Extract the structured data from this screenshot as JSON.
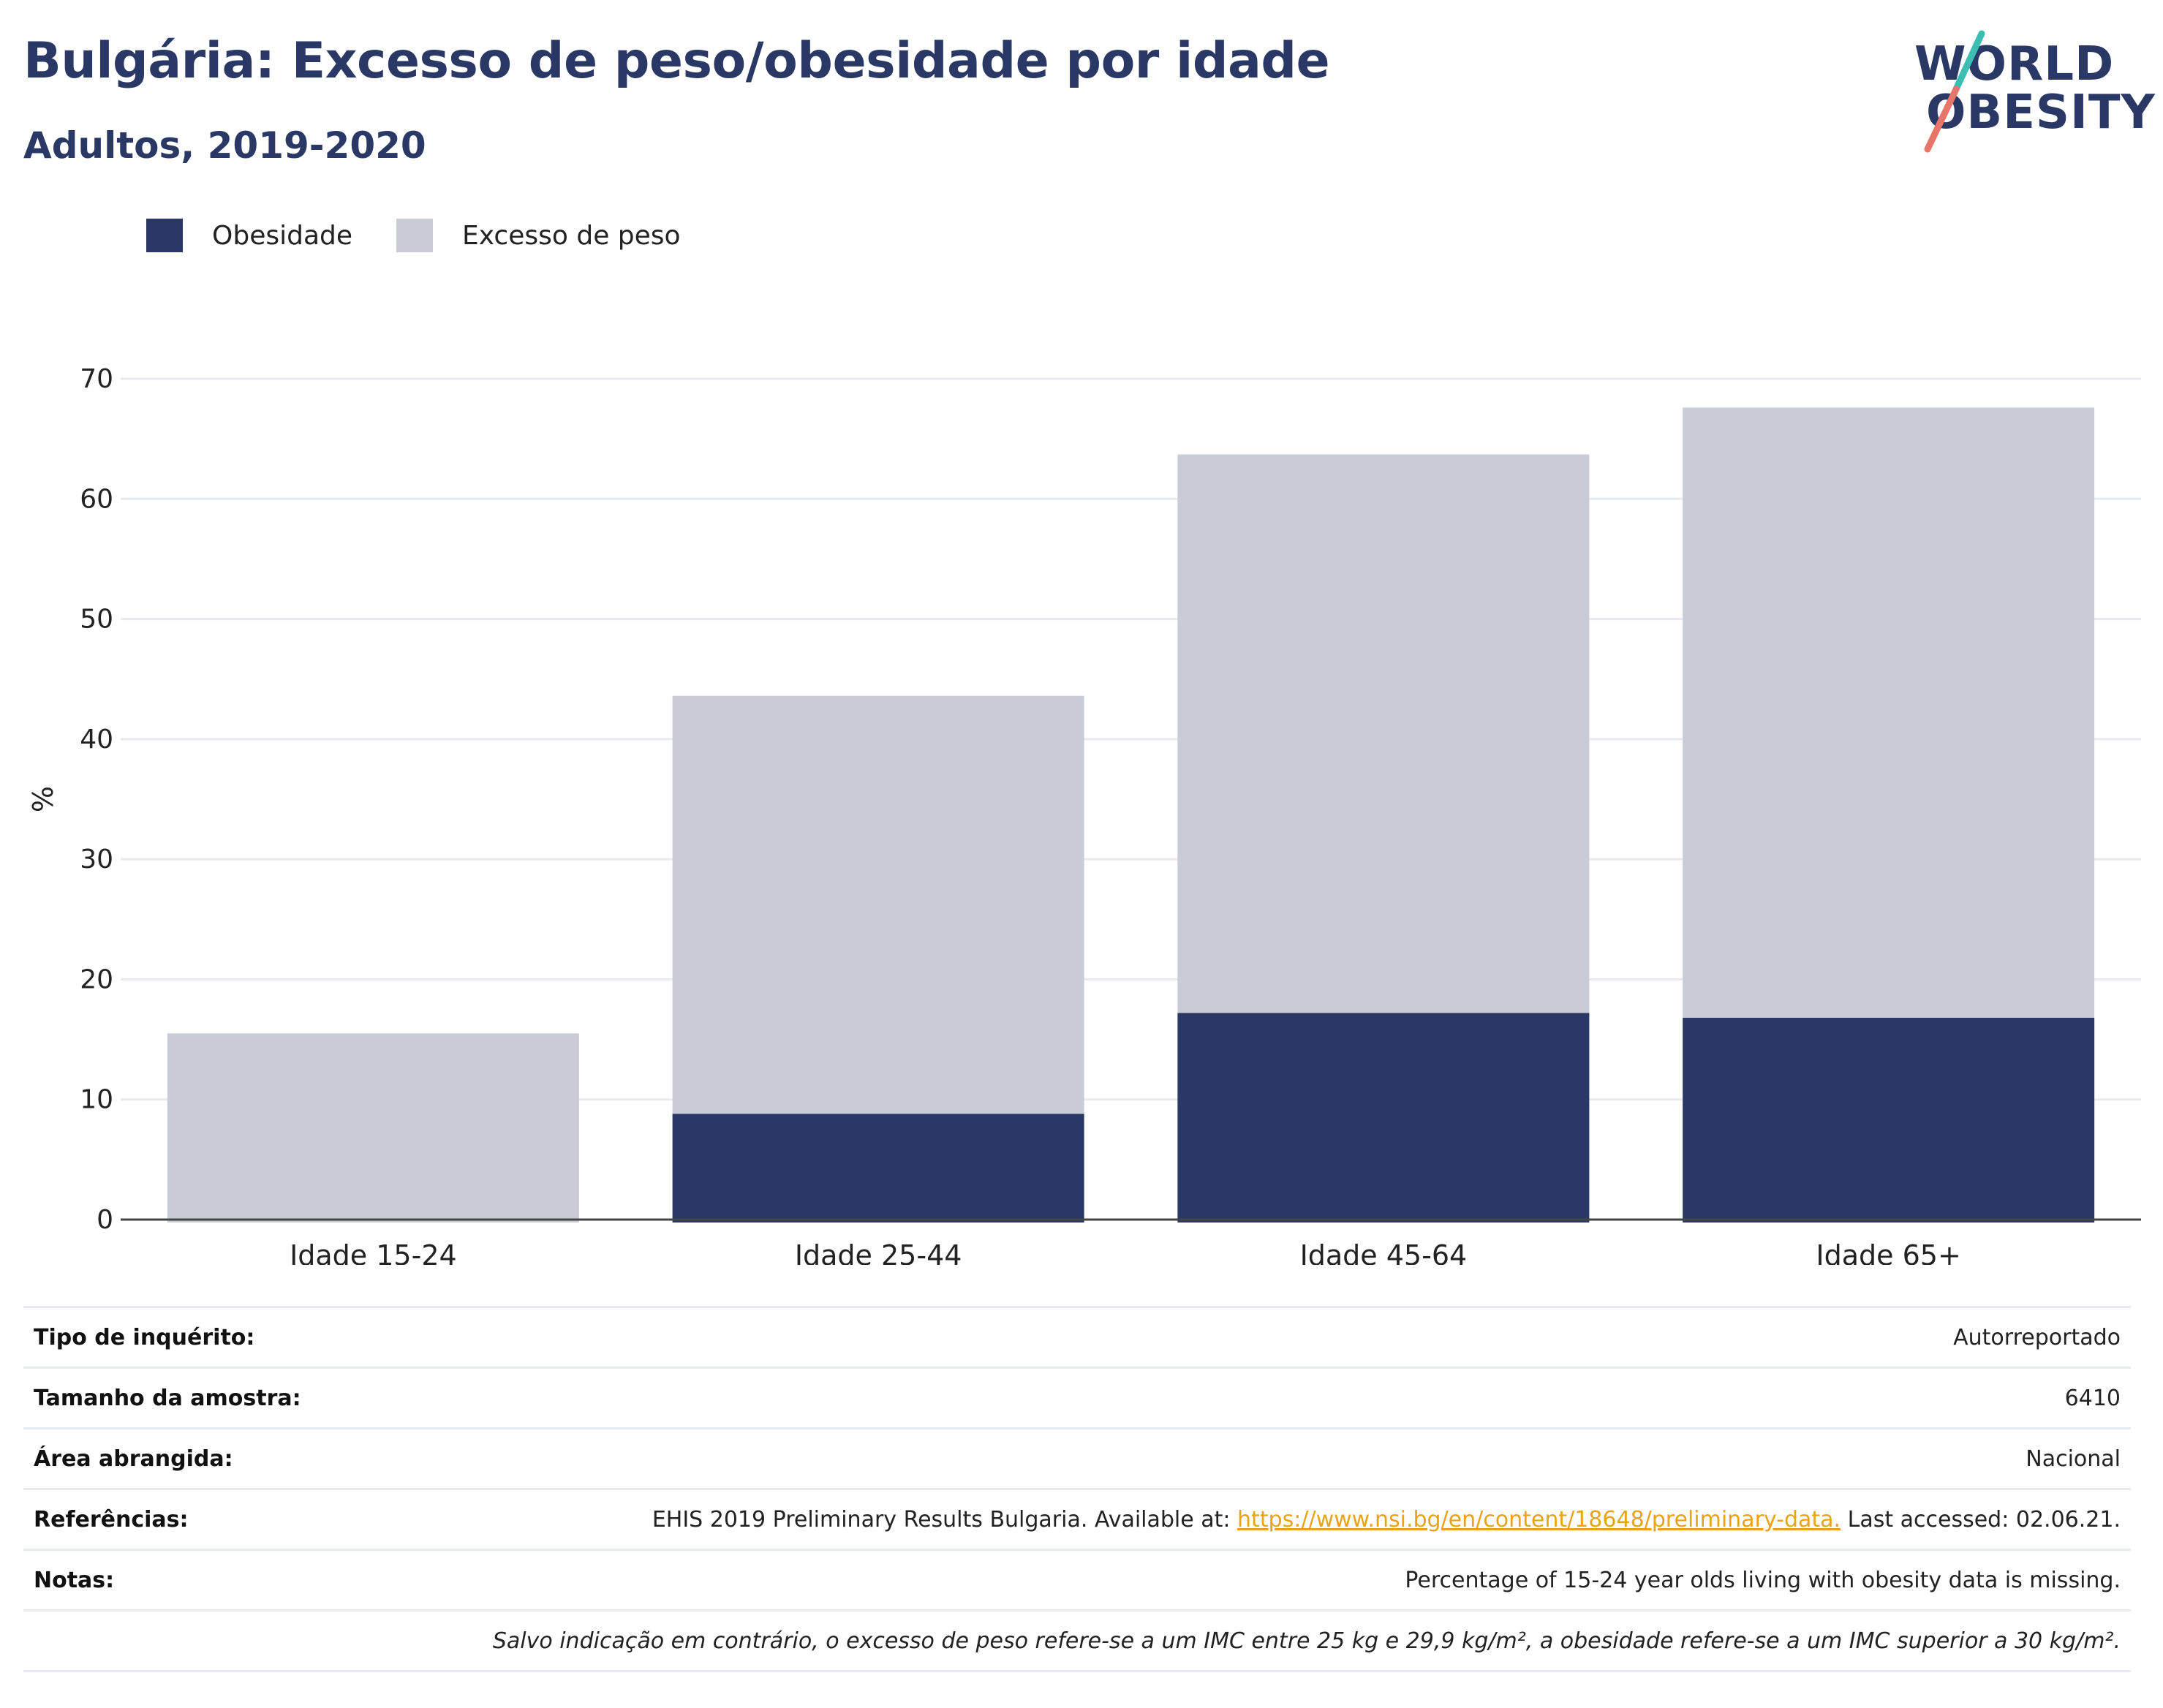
{
  "title": "Bulgária: Excesso de peso/obesidade por idade",
  "subtitle": "Adultos, 2019-2020",
  "logo": {
    "line1": "WORLD",
    "line2": "OBESITY"
  },
  "colors": {
    "obesity": "#2a3865",
    "overweight": "#c9ccd7",
    "link": "#e8a317",
    "logo_teal": "#3bbfb2",
    "logo_coral": "#e8756a"
  },
  "chart_data": {
    "type": "bar",
    "stacked": false,
    "categories": [
      "Idade 15-24",
      "Idade 25-44",
      "Idade 45-64",
      "Idade 65+"
    ],
    "series": [
      {
        "name": "Excesso de peso",
        "values": [
          15.5,
          43.6,
          63.7,
          67.6
        ]
      },
      {
        "name": "Obesidade",
        "values": [
          null,
          8.8,
          17.2,
          16.8
        ]
      }
    ],
    "legend": [
      "Obesidade",
      "Excesso de peso"
    ],
    "ylabel": "%",
    "yticks": [
      0,
      10,
      20,
      30,
      40,
      50,
      60,
      70
    ],
    "ylim": [
      0,
      70
    ],
    "grid": true
  },
  "info": {
    "survey_type": {
      "label": "Tipo de inquérito:",
      "value": "Autorreportado"
    },
    "sample_size": {
      "label": "Tamanho da amostra:",
      "value": "6410"
    },
    "area": {
      "label": "Área abrangida:",
      "value": "Nacional"
    },
    "references": {
      "label": "Referências:",
      "prefix": "EHIS 2019 Preliminary Results Bulgaria. Available at: ",
      "link": "https://www.nsi.bg/en/content/18648/preliminary-data.",
      "suffix": " Last accessed: 02.06.21."
    },
    "notes": {
      "label": "Notas:",
      "value": "Percentage of 15-24 year olds living with obesity data is missing."
    },
    "footnote": "Salvo indicação em contrário, o excesso de peso refere-se a um IMC entre 25 kg e 29,9 kg/m², a obesidade refere-se a um IMC superior a 30 kg/m²."
  }
}
